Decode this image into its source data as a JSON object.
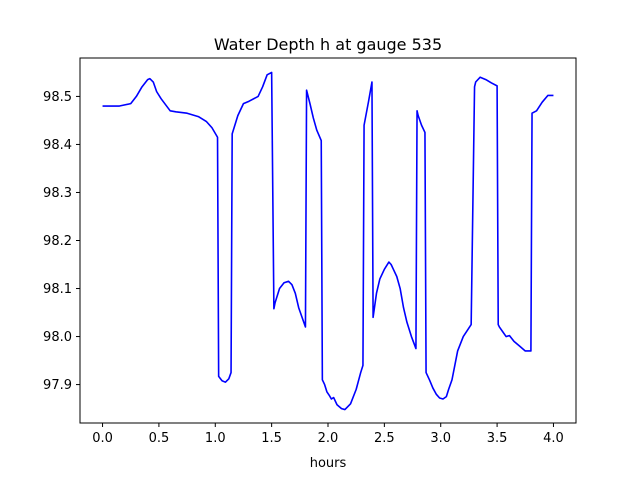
{
  "chart_data": {
    "type": "line",
    "title": "Water Depth h at gauge 535",
    "xlabel": "hours",
    "ylabel": "",
    "xlim": [
      -0.2,
      4.2
    ],
    "ylim": [
      97.82,
      98.58
    ],
    "x_ticks": [
      0.0,
      0.5,
      1.0,
      1.5,
      2.0,
      2.5,
      3.0,
      3.5,
      4.0
    ],
    "x_tick_labels": [
      "0.0",
      "0.5",
      "1.0",
      "1.5",
      "2.0",
      "2.5",
      "3.0",
      "3.5",
      "4.0"
    ],
    "y_ticks": [
      97.9,
      98.0,
      98.1,
      98.2,
      98.3,
      98.4,
      98.5
    ],
    "y_tick_labels": [
      "97.9",
      "98.0",
      "98.1",
      "98.2",
      "98.3",
      "98.4",
      "98.5"
    ],
    "grid": false,
    "series": [
      {
        "color": "#0000ff",
        "x": [
          0.0,
          0.15,
          0.25,
          0.3,
          0.35,
          0.4,
          0.42,
          0.45,
          0.48,
          0.52,
          0.6,
          0.65,
          0.75,
          0.85,
          0.92,
          0.97,
          1.02,
          1.03,
          1.06,
          1.09,
          1.12,
          1.14,
          1.15,
          1.2,
          1.25,
          1.3,
          1.38,
          1.42,
          1.46,
          1.5,
          1.52,
          1.53,
          1.57,
          1.61,
          1.65,
          1.68,
          1.71,
          1.74,
          1.77,
          1.8,
          1.81,
          1.84,
          1.87,
          1.9,
          1.94,
          1.95,
          1.97,
          1.99,
          2.01,
          2.03,
          2.05,
          2.08,
          2.12,
          2.15,
          2.2,
          2.25,
          2.29,
          2.31,
          2.32,
          2.36,
          2.39,
          2.4,
          2.43,
          2.46,
          2.5,
          2.54,
          2.56,
          2.58,
          2.61,
          2.64,
          2.67,
          2.7,
          2.74,
          2.78,
          2.79,
          2.8,
          2.83,
          2.86,
          2.87,
          2.9,
          2.93,
          2.96,
          2.99,
          3.02,
          3.05,
          3.07,
          3.1,
          3.15,
          3.2,
          3.27,
          3.3,
          3.31,
          3.35,
          3.4,
          3.45,
          3.5,
          3.51,
          3.52,
          3.55,
          3.58,
          3.61,
          3.65,
          3.7,
          3.75,
          3.8,
          3.81,
          3.85,
          3.9,
          3.95,
          4.0
        ],
        "y": [
          98.48,
          98.48,
          98.485,
          98.5,
          98.52,
          98.535,
          98.537,
          98.53,
          98.51,
          98.495,
          98.47,
          98.468,
          98.465,
          98.458,
          98.448,
          98.435,
          98.415,
          97.917,
          97.908,
          97.905,
          97.912,
          97.925,
          98.422,
          98.46,
          98.485,
          98.49,
          98.5,
          98.52,
          98.545,
          98.55,
          98.058,
          98.07,
          98.1,
          98.112,
          98.115,
          98.108,
          98.09,
          98.06,
          98.04,
          98.02,
          98.513,
          98.485,
          98.455,
          98.43,
          98.408,
          97.91,
          97.9,
          97.885,
          97.878,
          97.87,
          97.873,
          97.858,
          97.85,
          97.848,
          97.86,
          97.89,
          97.925,
          97.94,
          98.44,
          98.49,
          98.53,
          98.04,
          98.09,
          98.12,
          98.14,
          98.155,
          98.15,
          98.14,
          98.125,
          98.1,
          98.06,
          98.03,
          98.0,
          97.975,
          98.47,
          98.46,
          98.44,
          98.425,
          97.925,
          97.91,
          97.893,
          97.88,
          97.872,
          97.87,
          97.875,
          97.89,
          97.91,
          97.97,
          98.0,
          98.025,
          98.52,
          98.53,
          98.54,
          98.535,
          98.528,
          98.522,
          98.025,
          98.02,
          98.01,
          98.0,
          98.002,
          97.99,
          97.98,
          97.97,
          97.97,
          98.465,
          98.47,
          98.488,
          98.502,
          98.502
        ]
      }
    ]
  }
}
